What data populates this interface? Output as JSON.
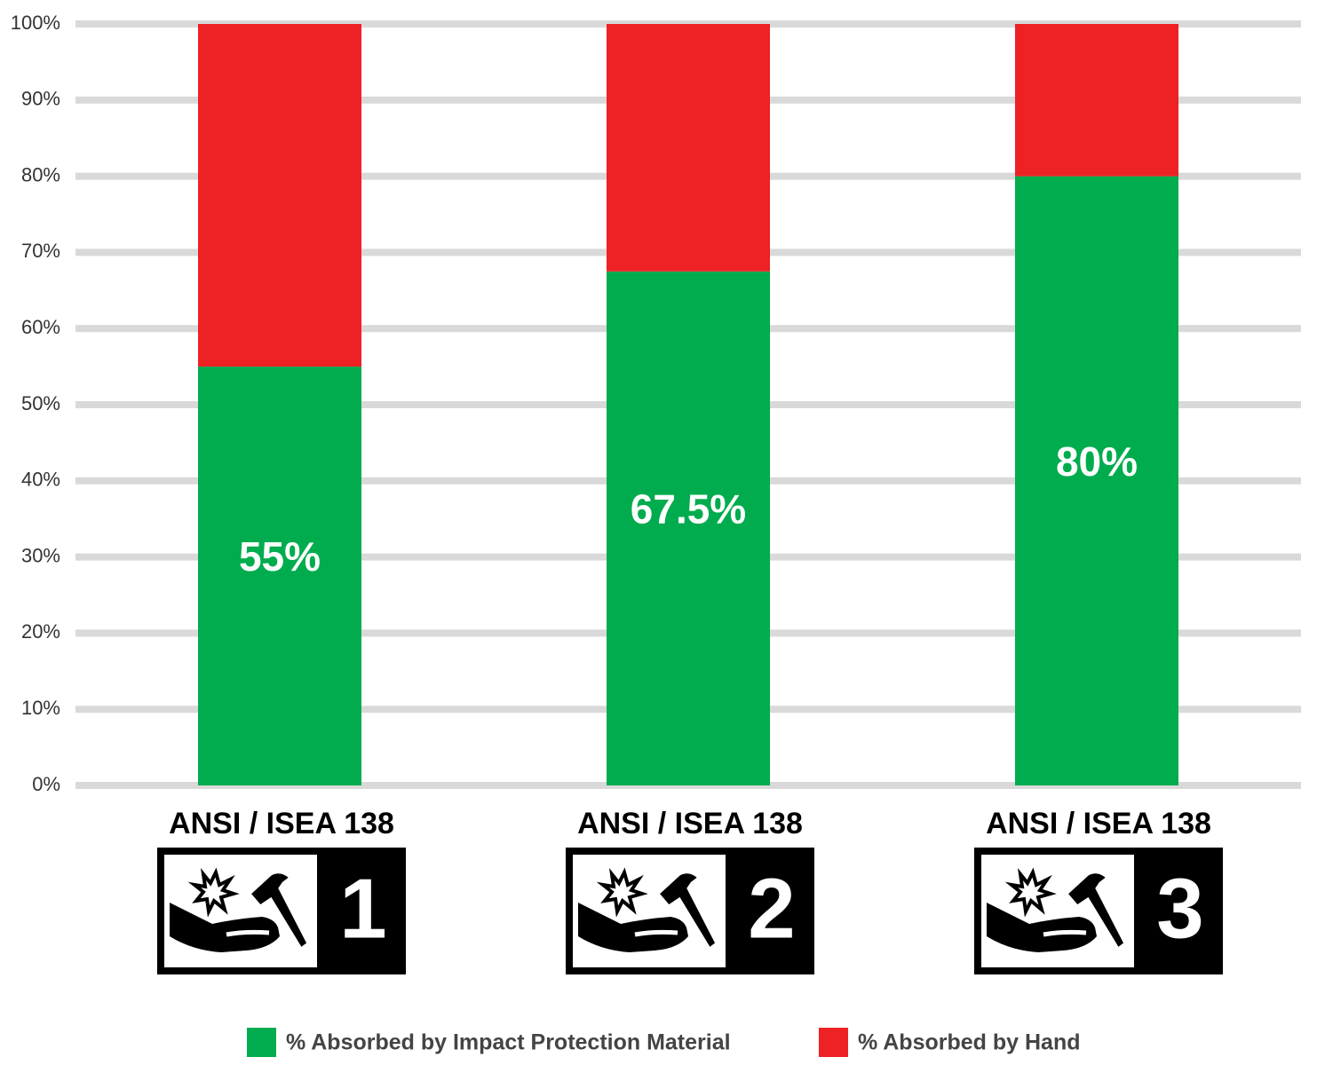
{
  "chart_data": {
    "type": "stacked_bar",
    "categories": [
      "ANSI / ISEA 138",
      "ANSI / ISEA 138",
      "ANSI / ISEA 138"
    ],
    "category_badges": [
      "1",
      "2",
      "3"
    ],
    "series": [
      {
        "name": "% Absorbed by Impact Protection Material",
        "color": "#00ac4e",
        "values": [
          55,
          67.5,
          80
        ],
        "value_labels": [
          "55%",
          "67.5%",
          "80%"
        ]
      },
      {
        "name": "% Absorbed by Hand",
        "color": "#ee2125",
        "values": [
          45,
          32.5,
          20
        ]
      }
    ],
    "ylim": [
      0,
      100
    ],
    "yticks": [
      {
        "value": 0,
        "label": "0%"
      },
      {
        "value": 10,
        "label": "10%"
      },
      {
        "value": 20,
        "label": "20%"
      },
      {
        "value": 30,
        "label": "30%"
      },
      {
        "value": 40,
        "label": "40%"
      },
      {
        "value": 50,
        "label": "50%"
      },
      {
        "value": 60,
        "label": "60%"
      },
      {
        "value": 70,
        "label": "70%"
      },
      {
        "value": 80,
        "label": "80%"
      },
      {
        "value": 90,
        "label": "90%"
      },
      {
        "value": 100,
        "label": "100%"
      }
    ],
    "grid": true
  }
}
